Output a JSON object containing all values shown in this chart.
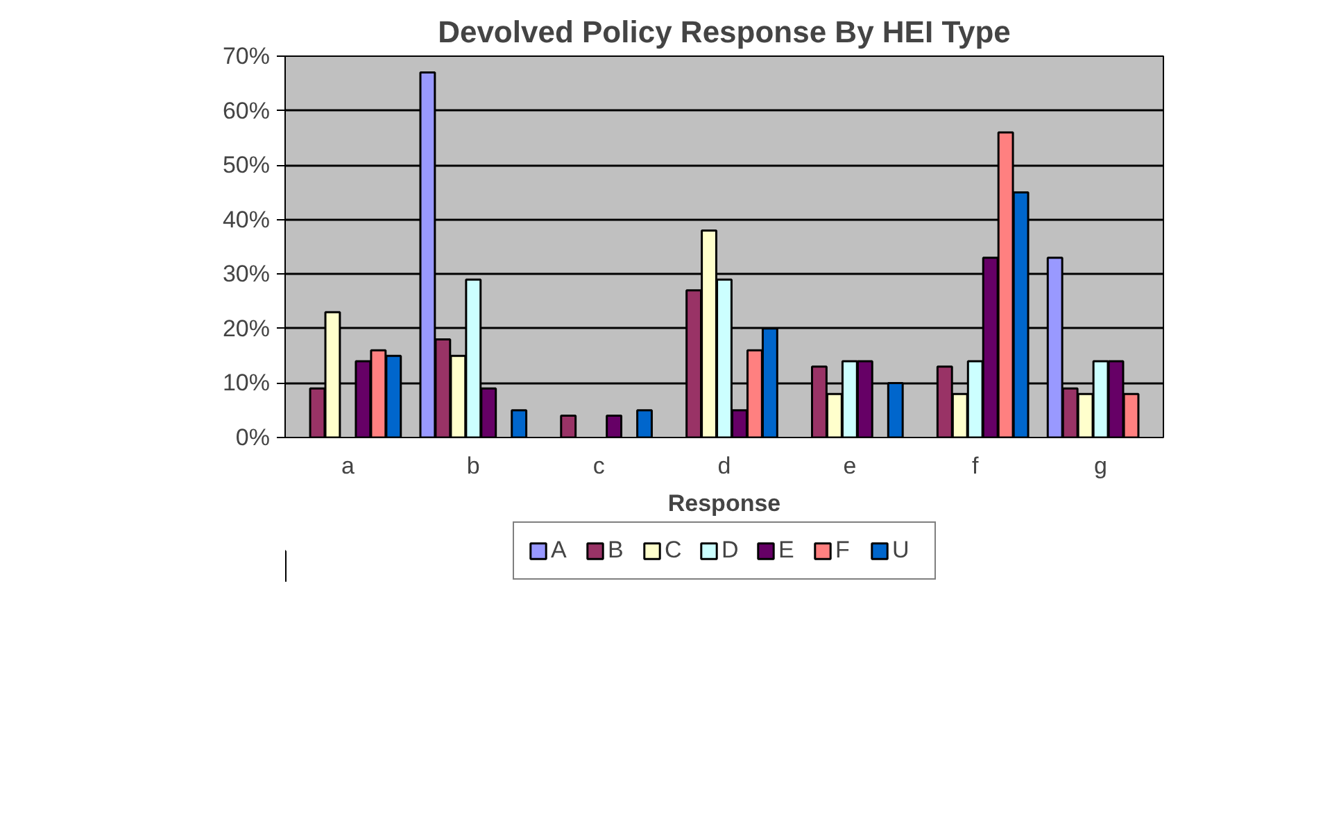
{
  "chart_data": {
    "type": "bar",
    "title": "Devolved Policy Response By HEI Type",
    "xlabel": "Response",
    "categories": [
      "a",
      "b",
      "c",
      "d",
      "e",
      "f",
      "g"
    ],
    "series": [
      {
        "name": "A",
        "color": "#9999ff",
        "values": [
          null,
          67,
          null,
          null,
          null,
          null,
          33
        ]
      },
      {
        "name": "B",
        "color": "#993366",
        "values": [
          9,
          18,
          4,
          27,
          13,
          13,
          9
        ]
      },
      {
        "name": "C",
        "color": "#ffffcc",
        "values": [
          23,
          15,
          null,
          38,
          8,
          8,
          8
        ]
      },
      {
        "name": "D",
        "color": "#ccffff",
        "values": [
          null,
          29,
          null,
          29,
          14,
          14,
          14
        ]
      },
      {
        "name": "E",
        "color": "#660066",
        "values": [
          14,
          9,
          4,
          5,
          14,
          33,
          14
        ]
      },
      {
        "name": "F",
        "color": "#ff8080",
        "values": [
          16,
          null,
          null,
          16,
          null,
          56,
          8
        ]
      },
      {
        "name": "U",
        "color": "#0066cc",
        "values": [
          15,
          5,
          5,
          20,
          10,
          45,
          null
        ]
      }
    ],
    "ylim": [
      0,
      70
    ],
    "yticks": [
      {
        "value": 0,
        "label": "0%"
      },
      {
        "value": 10,
        "label": "10%"
      },
      {
        "value": 20,
        "label": "20%"
      },
      {
        "value": 30,
        "label": "30%"
      },
      {
        "value": 40,
        "label": "40%"
      },
      {
        "value": 50,
        "label": "50%"
      },
      {
        "value": 60,
        "label": "60%"
      },
      {
        "value": 70,
        "label": "70%"
      }
    ],
    "grid": "y",
    "legend": "bottom"
  }
}
